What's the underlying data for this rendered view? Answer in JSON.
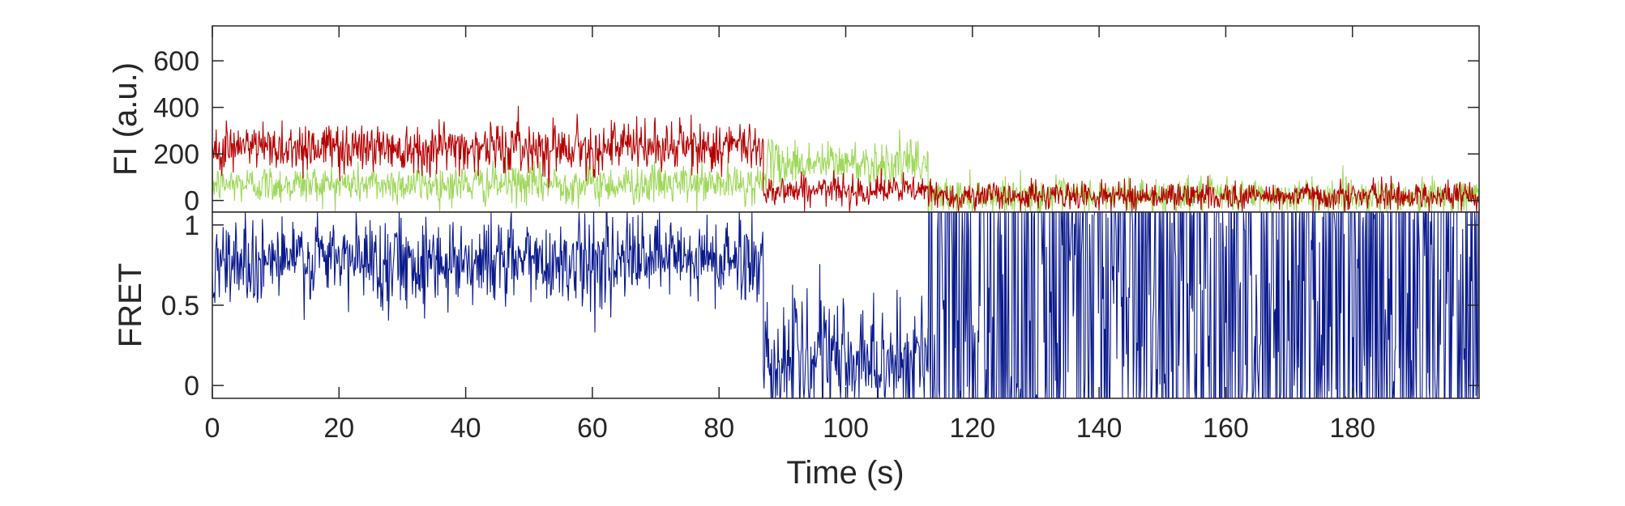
{
  "chart_data": [
    {
      "type": "line",
      "panel": "intensity",
      "ylabel": "FI (a.u.)",
      "xlabel": "",
      "xlim": [
        0,
        200
      ],
      "ylim": [
        -50,
        750
      ],
      "yticks": [
        {
          "value": 0,
          "label": "0"
        },
        {
          "value": 200,
          "label": "200"
        },
        {
          "value": 400,
          "label": "400"
        },
        {
          "value": 600,
          "label": "600"
        }
      ],
      "grid": false,
      "legend": "none",
      "series": [
        {
          "color": "#9ed85a",
          "style": "noisy-trace",
          "segments": [
            {
              "x_start": 0,
              "x_end": 87,
              "mean": 70,
              "noise_sd": 42
            },
            {
              "x_start": 87,
              "x_end": 113,
              "mean": 160,
              "noise_sd": 48
            },
            {
              "x_start": 113,
              "x_end": 200,
              "mean": 20,
              "noise_sd": 38
            }
          ]
        },
        {
          "color": "#b50000",
          "style": "noisy-trace",
          "segments": [
            {
              "x_start": 0,
              "x_end": 87,
              "mean": 230,
              "noise_sd": 55
            },
            {
              "x_start": 87,
              "x_end": 113,
              "mean": 45,
              "noise_sd": 32
            },
            {
              "x_start": 113,
              "x_end": 200,
              "mean": 20,
              "noise_sd": 30
            }
          ]
        }
      ]
    },
    {
      "type": "line",
      "panel": "fret",
      "ylabel": "FRET",
      "xlabel": "Time (s)",
      "xlim": [
        0,
        200
      ],
      "ylim": [
        -0.08,
        1.08
      ],
      "xticks": [
        {
          "value": 0,
          "label": "0"
        },
        {
          "value": 20,
          "label": "20"
        },
        {
          "value": 40,
          "label": "40"
        },
        {
          "value": 60,
          "label": "60"
        },
        {
          "value": 80,
          "label": "80"
        },
        {
          "value": 100,
          "label": "100"
        },
        {
          "value": 120,
          "label": "120"
        },
        {
          "value": 140,
          "label": "140"
        },
        {
          "value": 160,
          "label": "160"
        },
        {
          "value": 180,
          "label": "180"
        }
      ],
      "yticks": [
        {
          "value": 0,
          "label": "0"
        },
        {
          "value": 0.5,
          "label": "0.5"
        },
        {
          "value": 1,
          "label": "1"
        }
      ],
      "grid": false,
      "legend": "none",
      "series": [
        {
          "color": "#0a1a8c",
          "style": "noisy-trace",
          "segments": [
            {
              "x_start": 0,
              "x_end": 87,
              "mean": 0.78,
              "noise_sd": 0.14
            },
            {
              "x_start": 87,
              "x_end": 113,
              "mean": 0.15,
              "noise_sd": 0.2
            },
            {
              "x_start": 113,
              "x_end": 200,
              "mean": 0.5,
              "noise_sd": 0.55
            }
          ]
        }
      ]
    }
  ]
}
